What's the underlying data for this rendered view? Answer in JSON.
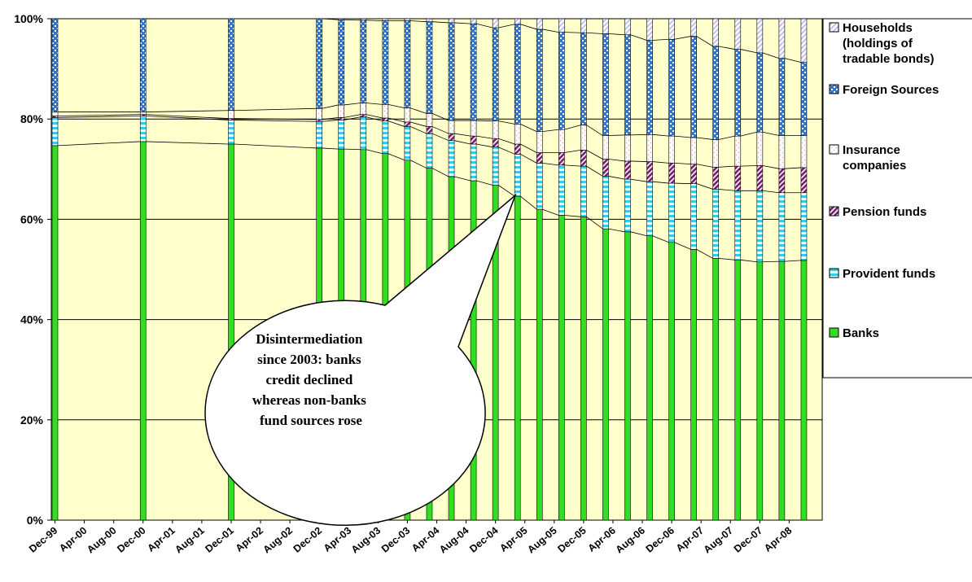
{
  "chart_data": {
    "type": "bar",
    "stacked": true,
    "normalized": true,
    "x_tick_labels": [
      "Dec-99",
      "Apr-00",
      "Aug-00",
      "Dec-00",
      "Apr-01",
      "Aug-01",
      "Dec-01",
      "Apr-02",
      "Aug-02",
      "Dec-02",
      "Apr-03",
      "Aug-03",
      "Dec-03",
      "Apr-04",
      "Aug-04",
      "Dec-04",
      "Apr-05",
      "Aug-05",
      "Dec-05",
      "Apr-06",
      "Aug-06",
      "Dec-06",
      "Apr-07",
      "Aug-07",
      "Dec-07",
      "Apr-08"
    ],
    "periods": [
      "Dec-99",
      "Dec-00",
      "Dec-01",
      "Dec-02",
      "Mar-03",
      "Jun-03",
      "Sep-03",
      "Dec-03",
      "Mar-04",
      "Jun-04",
      "Sep-04",
      "Dec-04",
      "Mar-05",
      "Jun-05",
      "Sep-05",
      "Dec-05",
      "Mar-06",
      "Jun-06",
      "Sep-06",
      "Dec-06",
      "Mar-07",
      "Jun-07",
      "Sep-07",
      "Dec-07",
      "Mar-08",
      "Jun-08"
    ],
    "ylim": [
      0,
      100
    ],
    "y_tick_labels": [
      "0%",
      "20%",
      "40%",
      "60%",
      "80%",
      "100%"
    ],
    "grid": "horizontal",
    "legend_position": "right",
    "series": [
      {
        "name": "Banks",
        "color": "#33dd22",
        "values": [
          74.7,
          75.5,
          75.0,
          74.2,
          74.0,
          73.9,
          73.1,
          71.8,
          70.2,
          68.5,
          67.7,
          66.8,
          64.6,
          62.0,
          60.8,
          60.5,
          58.1,
          57.5,
          56.7,
          55.4,
          54.0,
          52.2,
          51.9,
          51.5,
          51.6,
          51.8
        ]
      },
      {
        "name": "Provident funds",
        "color": "#33ccee",
        "values": [
          5.6,
          5.1,
          4.8,
          5.3,
          5.8,
          6.5,
          6.5,
          6.7,
          6.9,
          7.2,
          7.3,
          7.6,
          8.4,
          9.2,
          10.0,
          10.1,
          10.5,
          10.5,
          10.8,
          11.8,
          13.1,
          13.8,
          13.8,
          14.2,
          13.7,
          13.5
        ]
      },
      {
        "name": "Pension funds",
        "color": "#7a1f74",
        "values": [
          0.3,
          0.3,
          0.3,
          0.4,
          0.5,
          0.5,
          0.6,
          0.9,
          1.4,
          1.4,
          1.6,
          1.7,
          2.0,
          2.1,
          2.5,
          3.2,
          3.4,
          3.6,
          4.0,
          4.0,
          3.9,
          4.4,
          4.9,
          5.0,
          4.8,
          5.0
        ]
      },
      {
        "name": "Insurance companies",
        "color": "#ffffff",
        "values": [
          0.8,
          0.5,
          1.6,
          2.2,
          2.5,
          2.3,
          2.7,
          2.8,
          2.6,
          2.6,
          3.1,
          3.5,
          4.0,
          4.2,
          4.6,
          5.0,
          4.7,
          5.2,
          5.4,
          5.4,
          5.3,
          5.5,
          6.0,
          6.7,
          6.6,
          6.4
        ]
      },
      {
        "name": "Foreign Sources",
        "color": "#3377cc",
        "values": [
          18.6,
          18.6,
          18.3,
          17.9,
          17.0,
          16.5,
          16.7,
          17.4,
          18.3,
          19.5,
          19.3,
          18.6,
          19.9,
          20.4,
          19.4,
          18.4,
          20.3,
          20.0,
          18.8,
          19.3,
          20.2,
          18.6,
          17.3,
          15.8,
          15.4,
          14.6
        ]
      },
      {
        "name": "Households (holdings of tradable bonds)",
        "color": "#ccccf2",
        "values": [
          0,
          0,
          0,
          0,
          0.2,
          0.3,
          0.4,
          0.4,
          0.6,
          0.8,
          1.0,
          1.8,
          1.1,
          2.1,
          2.7,
          2.8,
          3.0,
          3.2,
          4.3,
          4.1,
          3.5,
          5.5,
          6.1,
          6.8,
          7.9,
          8.7
        ]
      }
    ],
    "legend": [
      {
        "lines": [
          "Households",
          "(holdings of",
          "tradable bonds)"
        ]
      },
      {
        "lines": [
          "Foreign Sources"
        ]
      },
      {
        "lines": [
          "Insurance",
          "companies"
        ]
      },
      {
        "lines": [
          "Pension funds"
        ]
      },
      {
        "lines": [
          "Provident funds"
        ]
      },
      {
        "lines": [
          "Banks"
        ]
      }
    ],
    "annotation": {
      "lines": [
        "Disintermediation",
        "since 2003: banks",
        "credit declined",
        "whereas non-banks",
        "fund sources rose"
      ]
    }
  },
  "colors": {
    "plot_background": "#ffffcc",
    "gridline": "#000000"
  }
}
